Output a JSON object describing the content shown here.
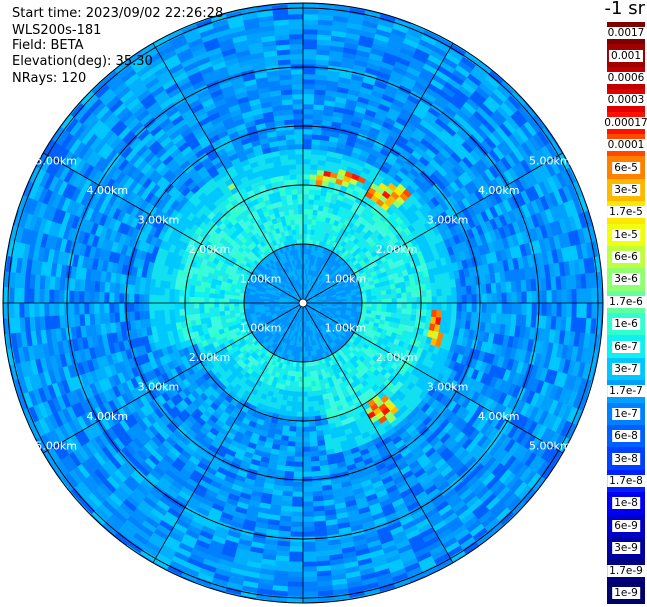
{
  "info": {
    "start_time": "Start time: 2023/09/02 22:26:28",
    "instrument": "WLS200s-181",
    "field": "Field: BETA",
    "elevation": "Elevation(deg): 35.30",
    "nrays": "NRays: 120"
  },
  "units": "-1 sr",
  "ring_labels": [
    "1.00km",
    "2.00km",
    "3.00km",
    "4.00km",
    "5.00km"
  ],
  "colorbar": [
    {
      "label": "0.0017",
      "color": "#7f0000"
    },
    {
      "label": "0.001",
      "color": "#a00000"
    },
    {
      "label": "0.0006",
      "color": "#c00000"
    },
    {
      "label": "0.0003",
      "color": "#e00000"
    },
    {
      "label": "0.00017",
      "color": "#ff1000"
    },
    {
      "label": "0.0001",
      "color": "#ff4800"
    },
    {
      "label": "6e-5",
      "color": "#ff8000"
    },
    {
      "label": "3e-5",
      "color": "#ffb800"
    },
    {
      "label": "1.7e-5",
      "color": "#ffe800"
    },
    {
      "label": "1e-5",
      "color": "#f0ff10"
    },
    {
      "label": "6e-6",
      "color": "#c0ff40"
    },
    {
      "label": "3e-6",
      "color": "#90ff70"
    },
    {
      "label": "1.7e-6",
      "color": "#60ffa0"
    },
    {
      "label": "1e-6",
      "color": "#30ffd0"
    },
    {
      "label": "6e-7",
      "color": "#10f0f0"
    },
    {
      "label": "3e-7",
      "color": "#00c8ff"
    },
    {
      "label": "1.7e-7",
      "color": "#00a0ff"
    },
    {
      "label": "1e-7",
      "color": "#0080ff"
    },
    {
      "label": "6e-8",
      "color": "#0060ff"
    },
    {
      "label": "3e-8",
      "color": "#0040ff"
    },
    {
      "label": "1.7e-8",
      "color": "#0020ff"
    },
    {
      "label": "1e-8",
      "color": "#0000f0"
    },
    {
      "label": "6e-9",
      "color": "#0000c8"
    },
    {
      "label": "3e-9",
      "color": "#0000a0"
    },
    {
      "label": "1.7e-9",
      "color": "#000080"
    },
    {
      "label": "1e-9",
      "color": "#00006a"
    }
  ]
}
